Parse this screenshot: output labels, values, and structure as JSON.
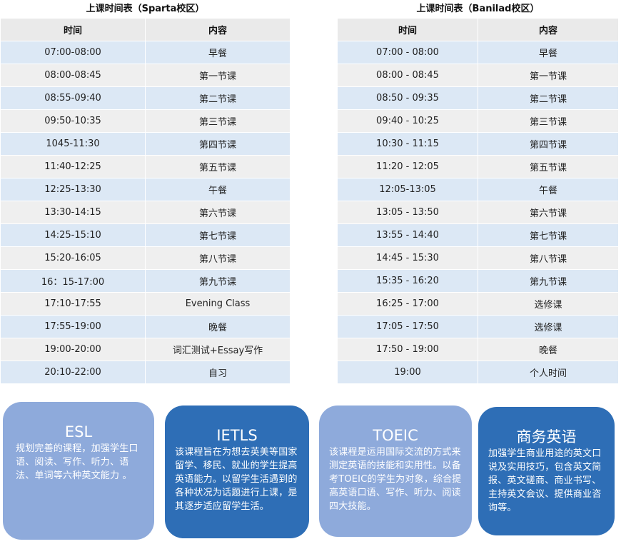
{
  "sparta": {
    "title": "上课时间表（Sparta校区）",
    "headers": {
      "time": "时间",
      "content": "内容"
    },
    "rows": [
      {
        "time": "07:00-08:00",
        "content": "早餐"
      },
      {
        "time": "08:00-08:45",
        "content": "第一节课"
      },
      {
        "time": "08:55-09:40",
        "content": "第二节课"
      },
      {
        "time": "09:50-10:35",
        "content": "第三节课"
      },
      {
        "time": "1045-11:30",
        "content": "第四节课"
      },
      {
        "time": "11:40-12:25",
        "content": "第五节课"
      },
      {
        "time": "12:25-13:30",
        "content": "午餐"
      },
      {
        "time": "13:30-14:15",
        "content": "第六节课"
      },
      {
        "time": "14:25-15:10",
        "content": "第七节课"
      },
      {
        "time": "15:20-16:05",
        "content": "第八节课"
      },
      {
        "time": "16：15-17:00",
        "content": "第九节课"
      },
      {
        "time": "17:10-17:55",
        "content": "Evening Class"
      },
      {
        "time": "17:55-19:00",
        "content": "晚餐"
      },
      {
        "time": "19:00-20:00",
        "content": "词汇测试+Essay写作"
      },
      {
        "time": "20:10-22:00",
        "content": "自习"
      }
    ]
  },
  "banilad": {
    "title": "上课时间表（Banilad校区）",
    "headers": {
      "time": "时间",
      "content": "内容"
    },
    "rows": [
      {
        "time": "07:00 - 08:00",
        "content": "早餐"
      },
      {
        "time": "08:00 - 08:45",
        "content": "第一节课"
      },
      {
        "time": "08:50 - 09:35",
        "content": "第二节课"
      },
      {
        "time": "09:40 - 10:25",
        "content": "第三节课"
      },
      {
        "time": "10:30 - 11:15",
        "content": "第四节课"
      },
      {
        "time": "11:20 - 12:05",
        "content": "第五节课"
      },
      {
        "time": "12:05-13:05",
        "content": "午餐"
      },
      {
        "time": "13:05 - 13:50",
        "content": "第六节课"
      },
      {
        "time": "13:55 - 14:40",
        "content": "第七节课"
      },
      {
        "time": "14:45 - 15:30",
        "content": "第八节课"
      },
      {
        "time": "15:35 - 16:20",
        "content": "第九节课"
      },
      {
        "time": "16:25 - 17:00",
        "content": "选修课"
      },
      {
        "time": "17:05 - 17:50",
        "content": "选修课"
      },
      {
        "time": "17:50 - 19:00",
        "content": "晚餐"
      },
      {
        "time": "19:00",
        "content": "个人时间"
      }
    ]
  },
  "courses": [
    {
      "title": "ESL",
      "desc": "规划完善的课程，加强学生口语、阅读、写作、听力、语法、单词等六种英文能力 。",
      "style": "light"
    },
    {
      "title": "IETLS",
      "desc": "该课程旨在为想去英美等国家留学、移民、就业的学生提高英语能力。以留学生活遇到的各种状况为话题进行上课，是其逐步适应留学生活。",
      "style": "dark"
    },
    {
      "title": "TOEIC",
      "desc": "该课程是运用国际交流的方式来测定英语的技能和实用性。以备考TOEIC的学生为对象，综合提高英语口语、写作、听力、阅读四大技能。",
      "style": "light"
    },
    {
      "title": "商务英语",
      "desc": "加强学生商业用途的英文口说及实用技巧，包含英文简报、英文磋商、商业书写、主持英文会议、提供商业咨询等。",
      "style": "dark"
    }
  ],
  "colors": {
    "row_blue": "#dce8f5",
    "row_gray": "#efefef",
    "header_gray": "#eaeaea",
    "card_light": "#8eaadb",
    "card_dark": "#2e6eb6"
  }
}
